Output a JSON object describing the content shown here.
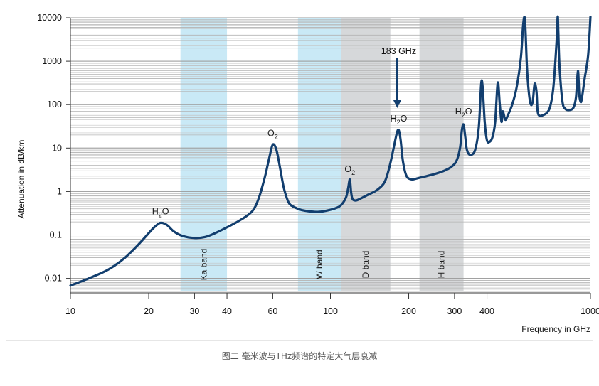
{
  "chart_data": {
    "type": "line",
    "title": "",
    "xlabel": "Frequency in GHz",
    "ylabel": "Attenuation in dB/km",
    "x_scale": "log",
    "y_scale": "log",
    "xlim": [
      10,
      1000
    ],
    "ylim": [
      0.005,
      10000
    ],
    "x_ticks": [
      "10",
      "20",
      "30",
      "40",
      "60",
      "100",
      "200",
      "300",
      "400",
      "1000"
    ],
    "y_ticks": [
      "0.01",
      "0.1",
      "1",
      "10",
      "100",
      "1000",
      "10000"
    ],
    "grid": true,
    "bands": [
      {
        "label": "Ka band",
        "range": [
          26.5,
          40
        ],
        "color": "#c9e9f6"
      },
      {
        "label": "W band",
        "range": [
          75,
          110
        ],
        "color": "#c9e9f6"
      },
      {
        "label": "D band",
        "range": [
          110,
          170
        ],
        "color": "#d6d8da"
      },
      {
        "label": "H band",
        "range": [
          220,
          325
        ],
        "color": "#d6d8da"
      }
    ],
    "peak_labels": [
      {
        "text": "H2O",
        "x": 22.2,
        "y": 0.19
      },
      {
        "text": "O2",
        "x": 60,
        "y": 12
      },
      {
        "text": "O2",
        "x": 118.75,
        "y": 1.8
      },
      {
        "text": "H2O",
        "x": 183,
        "y": 26
      },
      {
        "text": "H2O",
        "x": 325,
        "y": 38
      }
    ],
    "annotation": {
      "text": "183 GHz",
      "x": 183
    },
    "series": [
      {
        "color": "#123e6e",
        "x": [
          10,
          12,
          14,
          16,
          18,
          20,
          21,
          22.2,
          23.5,
          25,
          27,
          30,
          33,
          36,
          40,
          45,
          50,
          53,
          56,
          58,
          60,
          62,
          64,
          66,
          68,
          70,
          75,
          80,
          90,
          100,
          108,
          112,
          115,
          117,
          118.75,
          120,
          121.5,
          125,
          130,
          140,
          150,
          160,
          165,
          170,
          175,
          180,
          183,
          186,
          190,
          196,
          205,
          215,
          230,
          250,
          270,
          290,
          305,
          315,
          320,
          325,
          330,
          335,
          345,
          360,
          372,
          380,
          385,
          392,
          400,
          410,
          420,
          430,
          440,
          448,
          455,
          460,
          470,
          480,
          500,
          520,
          540,
          550,
          557,
          562,
          570,
          580,
          590,
          600,
          610,
          620,
          625,
          630,
          640,
          660,
          680,
          700,
          720,
          740,
          748,
          752,
          760,
          780,
          800,
          830,
          860,
          880,
          895,
          905,
          915,
          925,
          950,
          980,
          1000
        ],
        "y": [
          0.0068,
          0.0105,
          0.016,
          0.028,
          0.055,
          0.11,
          0.15,
          0.19,
          0.17,
          0.12,
          0.095,
          0.085,
          0.09,
          0.11,
          0.15,
          0.22,
          0.35,
          0.7,
          2.2,
          5.5,
          12,
          9,
          3.5,
          1.3,
          0.7,
          0.5,
          0.4,
          0.36,
          0.34,
          0.38,
          0.45,
          0.56,
          0.75,
          1.2,
          1.9,
          1.0,
          0.68,
          0.62,
          0.68,
          0.85,
          1.05,
          1.5,
          2.3,
          4.5,
          10,
          22,
          26,
          16,
          5,
          2.3,
          1.9,
          2,
          2.2,
          2.5,
          2.9,
          3.6,
          5,
          10,
          25,
          35,
          18,
          9,
          7,
          9,
          30,
          300,
          250,
          40,
          15,
          14,
          18,
          40,
          320,
          100,
          40,
          70,
          45,
          55,
          100,
          250,
          1200,
          6000,
          10500,
          6000,
          700,
          180,
          100,
          120,
          300,
          200,
          80,
          60,
          55,
          58,
          65,
          90,
          250,
          2500,
          10500,
          5000,
          800,
          120,
          80,
          75,
          85,
          150,
          600,
          180,
          120,
          130,
          400,
          1400,
          10500
        ]
      }
    ]
  },
  "caption": "图二 毫米波与THz频谱的特定大气层衰减"
}
